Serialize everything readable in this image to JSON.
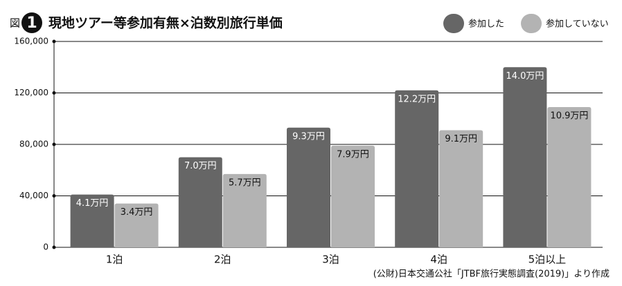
{
  "chart_data": {
    "type": "bar",
    "figure_label": "図",
    "figure_number": "1",
    "title": "現地ツアー等参加有無×泊数別旅行単価",
    "categories": [
      "1泊",
      "2泊",
      "3泊",
      "4泊",
      "5泊以上"
    ],
    "series": [
      {
        "name": "参加した",
        "color": "#666666",
        "values": [
          41000,
          70000,
          93000,
          122000,
          140000
        ],
        "value_labels": [
          "4.1万円",
          "7.0万円",
          "9.3万円",
          "12.2万円",
          "14.0万円"
        ]
      },
      {
        "name": "参加していない",
        "color": "#b3b3b3",
        "values": [
          34000,
          57000,
          79000,
          91000,
          109000
        ],
        "value_labels": [
          "3.4万円",
          "5.7万円",
          "7.9万円",
          "9.1万円",
          "10.9万円"
        ]
      }
    ],
    "ylim": [
      0,
      160000
    ],
    "yticks": [
      0,
      {
        "value": 40000,
        "label": "40,000"
      },
      {
        "value": 80000,
        "label": "80,000"
      },
      {
        "value": 120000,
        "label": "120,000"
      },
      {
        "value": 160000,
        "label": "160,000"
      }
    ],
    "grid": true,
    "legend": "top-right",
    "source": "(公財)日本交通公社「JTBF旅行実態調査(2019)」より作成"
  }
}
